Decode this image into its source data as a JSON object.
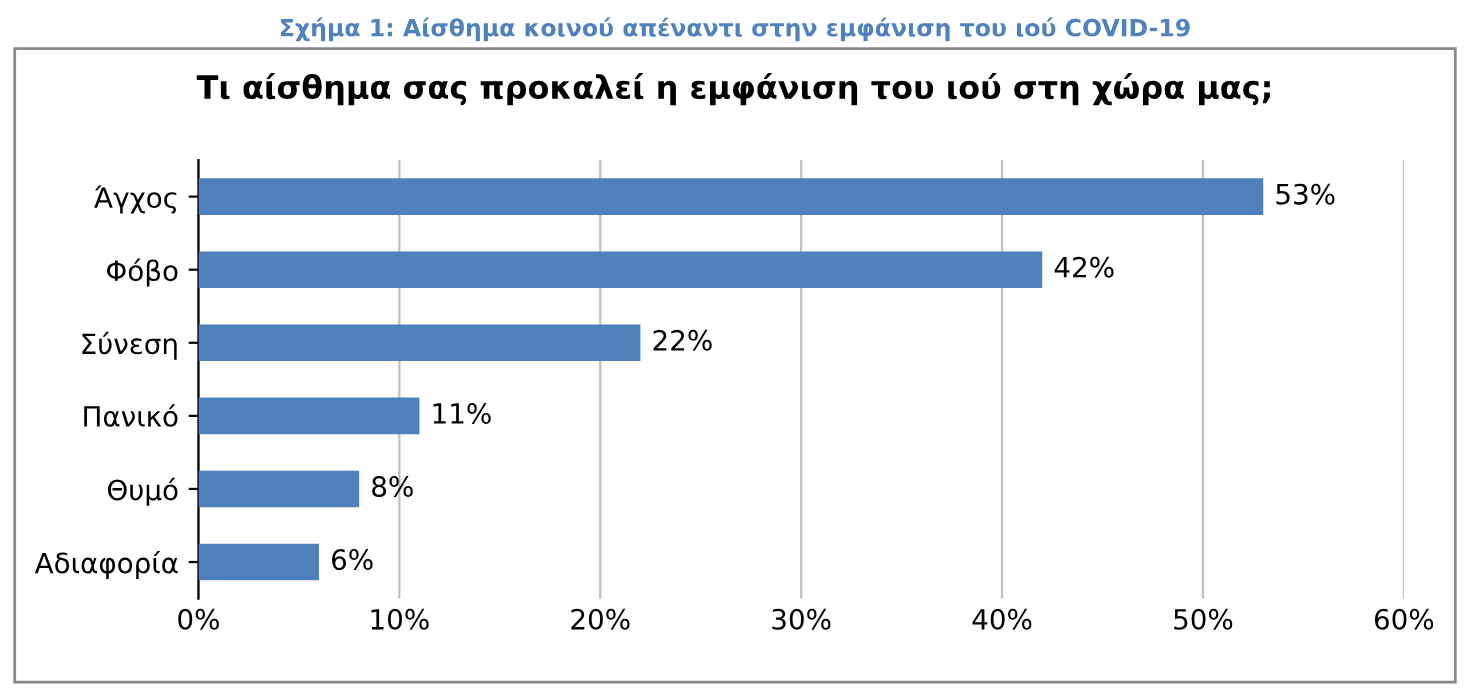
{
  "chart_data": {
    "type": "bar",
    "orientation": "horizontal",
    "title": "Σχήμα 1: Αίσθημα κοινού απέναντι στην εμφάνιση του ιού COVID-19",
    "subtitle": "Τι αίσθημα σας προκαλεί η εμφάνιση του ιού στη χώρα μας;",
    "categories": [
      "Άγχος",
      "Φόβο",
      "Σύνεση",
      "Πανικό",
      "Θυμό",
      "Αδιαφορία"
    ],
    "values": [
      53,
      42,
      22,
      11,
      8,
      6
    ],
    "value_labels": [
      "53%",
      "42%",
      "22%",
      "11%",
      "8%",
      "6%"
    ],
    "color": "#4f81bd",
    "xlim": [
      0,
      60
    ],
    "xticks": [
      {
        "value": 0,
        "label": "0%"
      },
      {
        "value": 10,
        "label": "10%"
      },
      {
        "value": 20,
        "label": "20%"
      },
      {
        "value": 30,
        "label": "30%"
      },
      {
        "value": 40,
        "label": "40%"
      },
      {
        "value": 50,
        "label": "50%"
      },
      {
        "value": 60,
        "label": "60%"
      }
    ],
    "grid": "x",
    "legend": false
  }
}
